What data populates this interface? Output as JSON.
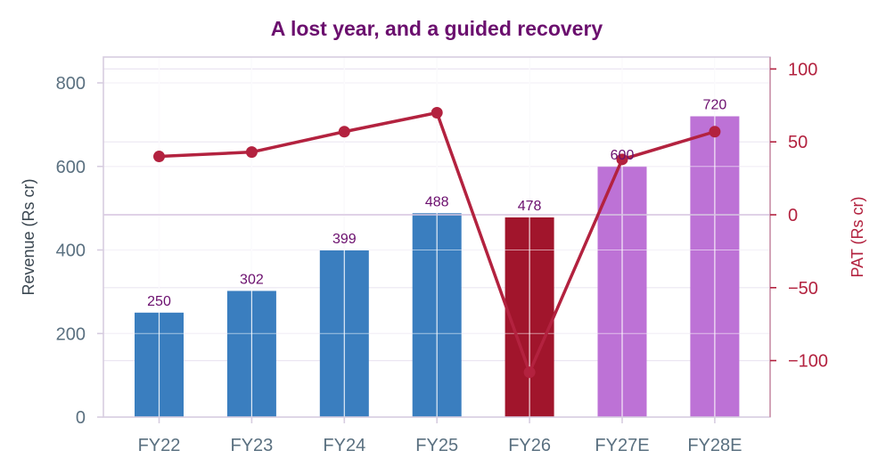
{
  "chart_data": {
    "type": "bar",
    "title": "A lost year, and a guided recovery",
    "categories": [
      "FY22",
      "FY23",
      "FY24",
      "FY25",
      "FY26",
      "FY27E",
      "FY28E"
    ],
    "series": [
      {
        "axis": "left",
        "kind": "bar",
        "values": [
          250,
          302,
          399,
          488,
          478,
          600,
          720
        ],
        "colors": [
          "#3a7ebf",
          "#3a7ebf",
          "#3a7ebf",
          "#3a7ebf",
          "#a1152c",
          "#bd72d6",
          "#bd72d6"
        ]
      },
      {
        "axis": "right",
        "kind": "line",
        "values": [
          40,
          43,
          57,
          70,
          -108,
          38,
          57
        ],
        "color": "#b3223f"
      }
    ],
    "left_axis": {
      "label": "Revenue (Rs cr)",
      "ticks": [
        0,
        200,
        400,
        600,
        800
      ],
      "ylim": [
        0,
        800
      ]
    },
    "right_axis": {
      "label": "PAT (Rs cr)",
      "ticks": [
        100,
        50,
        0,
        -50,
        -100
      ],
      "tick_labels": [
        "100",
        "50",
        "0",
        "−50",
        "−100"
      ],
      "ylim": [
        -138,
        110
      ]
    },
    "grid": true,
    "reference_line": 0,
    "colors": {
      "title": "#6b0f6e",
      "bar_label": "#6b0f6e",
      "left_ticks": "#5a7080",
      "left_label": "#3a4650",
      "right_axis": "#b3223f",
      "grid": "#ebe6f2",
      "frame": "#d7cde0",
      "zero_line": "#d7c6e0"
    }
  }
}
